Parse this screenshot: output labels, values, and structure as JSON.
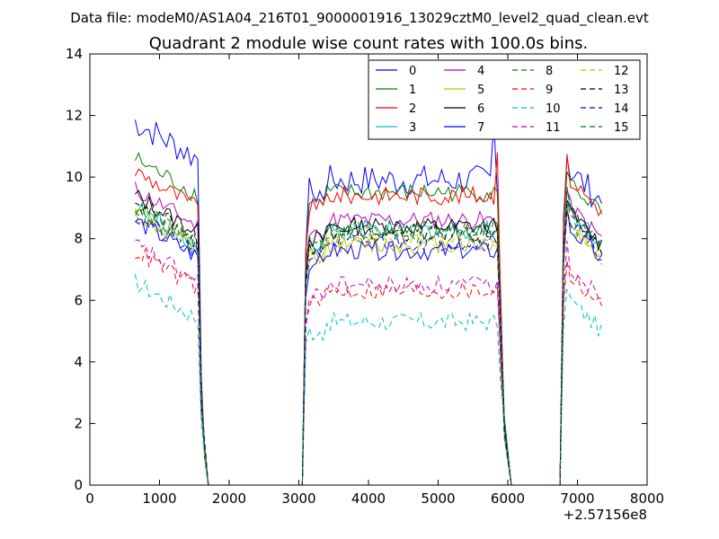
{
  "figure": {
    "suptitle": "Data file: modeM0/AS1A04_216T01_9000001916_13029cztM0_level2_quad_clean.evt"
  },
  "chart_data": {
    "type": "line",
    "title": "Quadrant 2 module wise count rates with 100.0s bins.",
    "xlabel": "",
    "ylabel": "",
    "xlim": [
      0,
      8000
    ],
    "ylim": [
      0,
      14
    ],
    "x_offset_label": "+2.57156e8",
    "xticks": [
      0,
      1000,
      2000,
      3000,
      4000,
      5000,
      6000,
      7000,
      8000
    ],
    "yticks": [
      0,
      2,
      4,
      6,
      8,
      10,
      12,
      14
    ],
    "legend_position": "top-right",
    "segments": [
      {
        "start": 650,
        "end": 1650,
        "fall_at": 1550,
        "zero_at": 1700
      },
      {
        "start": 3050,
        "end": 5950,
        "rise_at": 3100,
        "fall_at": 5850,
        "zero_at": 6050
      },
      {
        "start": 6750,
        "end": 7350,
        "rise_at": 6800
      }
    ],
    "zero_line": [
      1700,
      3050,
      6050,
      6750
    ],
    "series": [
      {
        "name": "0",
        "color": "#0000ff",
        "style": "solid",
        "levels": [
          11.8,
          9.9,
          10.2
        ],
        "noise": 0.5
      },
      {
        "name": "1",
        "color": "#008000",
        "style": "solid",
        "levels": [
          10.6,
          9.5,
          9.8
        ],
        "noise": 0.3
      },
      {
        "name": "2",
        "color": "#ff0000",
        "style": "solid",
        "levels": [
          10.2,
          9.4,
          9.9
        ],
        "noise": 0.3
      },
      {
        "name": "3",
        "color": "#00bfbf",
        "style": "solid",
        "levels": [
          9.0,
          8.3,
          8.9
        ],
        "noise": 0.3
      },
      {
        "name": "4",
        "color": "#bf00bf",
        "style": "solid",
        "levels": [
          9.6,
          8.6,
          9.0
        ],
        "noise": 0.3
      },
      {
        "name": "5",
        "color": "#bfbf00",
        "style": "solid",
        "levels": [
          8.8,
          7.8,
          8.4
        ],
        "noise": 0.3
      },
      {
        "name": "6",
        "color": "#000000",
        "style": "solid",
        "levels": [
          9.4,
          8.4,
          8.8
        ],
        "noise": 0.3
      },
      {
        "name": "7",
        "color": "#0000ff",
        "style": "solid",
        "levels": [
          8.6,
          7.6,
          8.3
        ],
        "noise": 0.3
      },
      {
        "name": "8",
        "color": "#008000",
        "style": "dashed",
        "levels": [
          9.0,
          8.1,
          8.6
        ],
        "noise": 0.3
      },
      {
        "name": "9",
        "color": "#ff0000",
        "style": "dashed",
        "levels": [
          7.6,
          6.3,
          6.8
        ],
        "noise": 0.3
      },
      {
        "name": "10",
        "color": "#00bfbf",
        "style": "dashed",
        "levels": [
          6.6,
          5.3,
          6.0
        ],
        "noise": 0.3
      },
      {
        "name": "11",
        "color": "#bf00bf",
        "style": "dashed",
        "levels": [
          7.8,
          6.5,
          7.1
        ],
        "noise": 0.3
      },
      {
        "name": "12",
        "color": "#bfbf00",
        "style": "dashed",
        "levels": [
          8.9,
          7.9,
          8.4
        ],
        "noise": 0.3
      },
      {
        "name": "13",
        "color": "#000000",
        "style": "dashed",
        "levels": [
          9.2,
          8.2,
          8.7
        ],
        "noise": 0.3
      },
      {
        "name": "14",
        "color": "#0000ff",
        "style": "dashed",
        "levels": [
          8.7,
          7.9,
          8.5
        ],
        "noise": 0.3
      },
      {
        "name": "15",
        "color": "#008000",
        "style": "dashed",
        "levels": [
          9.1,
          8.3,
          8.8
        ],
        "noise": 0.3
      }
    ]
  }
}
